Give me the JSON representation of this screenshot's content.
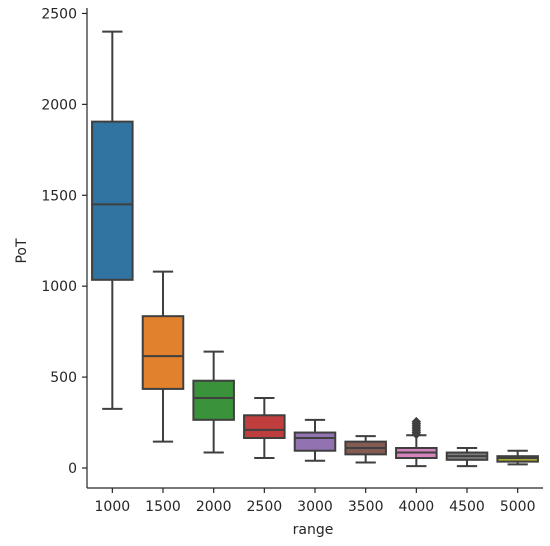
{
  "chart_data": {
    "type": "box",
    "xlabel": "range",
    "ylabel": "PoT",
    "ylim": [
      -110,
      2530
    ],
    "yticks": [
      0,
      500,
      1000,
      1500,
      2000,
      2500
    ],
    "yticklabels": [
      "0",
      "500",
      "1000",
      "1500",
      "2000",
      "2500"
    ],
    "grid": false,
    "categories": [
      "1000",
      "1500",
      "2000",
      "2500",
      "3000",
      "3500",
      "4000",
      "4500",
      "5000"
    ],
    "boxes": [
      {
        "category": "1000",
        "whisker_low": 325,
        "q1": 1035,
        "median": 1450,
        "q3": 1905,
        "whisker_high": 2400,
        "color": "#3274a1",
        "outliers": []
      },
      {
        "category": "1500",
        "whisker_low": 145,
        "q1": 435,
        "median": 615,
        "q3": 835,
        "whisker_high": 1080,
        "color": "#e1812c",
        "outliers": []
      },
      {
        "category": "2000",
        "whisker_low": 85,
        "q1": 265,
        "median": 385,
        "q3": 480,
        "whisker_high": 640,
        "color": "#3a923a",
        "outliers": []
      },
      {
        "category": "2500",
        "whisker_low": 55,
        "q1": 165,
        "median": 210,
        "q3": 290,
        "whisker_high": 385,
        "color": "#c03d3e",
        "outliers": []
      },
      {
        "category": "3000",
        "whisker_low": 40,
        "q1": 95,
        "median": 165,
        "q3": 195,
        "whisker_high": 265,
        "color": "#9372b2",
        "outliers": []
      },
      {
        "category": "3500",
        "whisker_low": 30,
        "q1": 75,
        "median": 110,
        "q3": 145,
        "whisker_high": 175,
        "color": "#845b53",
        "outliers": []
      },
      {
        "category": "4000",
        "whisker_low": 10,
        "q1": 55,
        "median": 85,
        "q3": 110,
        "whisker_high": 180,
        "color": "#d684bd",
        "outliers": [
          185,
          195,
          205,
          215,
          225,
          235,
          245,
          255
        ]
      },
      {
        "category": "4500",
        "whisker_low": 10,
        "q1": 45,
        "median": 65,
        "q3": 85,
        "whisker_high": 110,
        "color": "#7f7f7f",
        "outliers": []
      },
      {
        "category": "5000",
        "whisker_low": 20,
        "q1": 35,
        "median": 55,
        "q3": 65,
        "whisker_high": 95,
        "color": "#a9aa35",
        "outliers": []
      }
    ]
  }
}
